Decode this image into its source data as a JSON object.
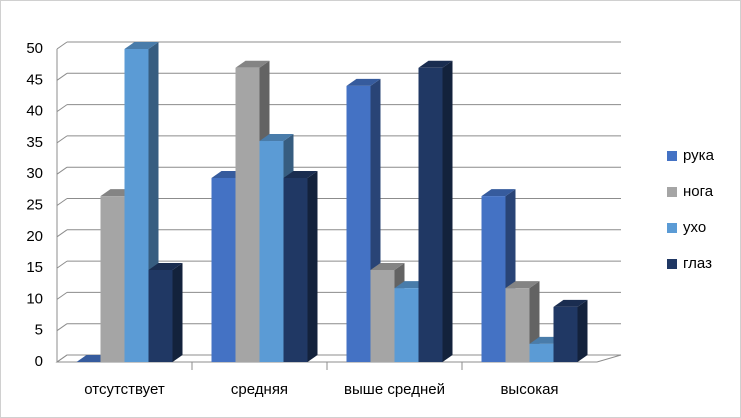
{
  "chart_data": {
    "type": "bar3d",
    "categories": [
      "отсутствует",
      "средняя",
      "выше средней",
      "высокая"
    ],
    "series": [
      {
        "name": "рука",
        "color": "#4472c4",
        "values": [
          0,
          29.4,
          44.1,
          26.5
        ]
      },
      {
        "name": "нога",
        "color": "#a5a5a5",
        "values": [
          26.5,
          47,
          14.7,
          11.8
        ]
      },
      {
        "name": "ухо",
        "color": "#5b9bd5",
        "values": [
          50,
          35.3,
          11.8,
          2.9
        ]
      },
      {
        "name": "глаз",
        "color": "#203864",
        "values": [
          14.7,
          29.4,
          47,
          8.8
        ]
      }
    ],
    "ylim": [
      0,
      50
    ],
    "yticks": [
      0,
      5,
      10,
      15,
      20,
      25,
      30,
      35,
      40,
      45,
      50
    ],
    "grid": true,
    "legend": "right"
  }
}
